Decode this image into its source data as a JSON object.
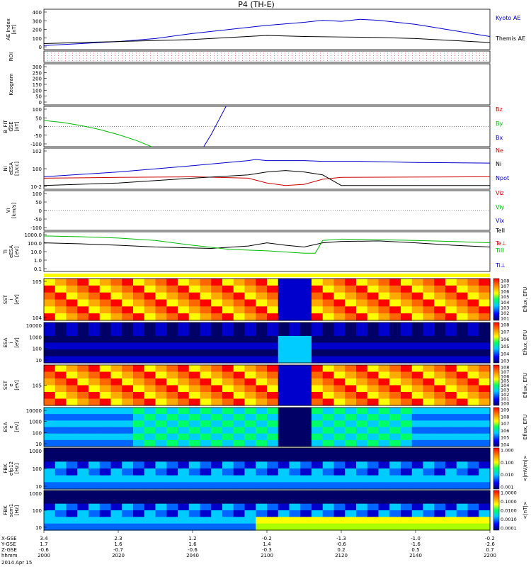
{
  "chart_data": {
    "type": "line",
    "title": "P4 (TH-E)",
    "date_label": "2014 Apr 15",
    "time_axis": {
      "row_labels": [
        "X-GSE",
        "Y-GSE",
        "Z-GSE",
        "hhmm"
      ],
      "ticks": [
        {
          "x": "3.4",
          "y": "1.7",
          "z": "-0.6",
          "hhmm": "2000"
        },
        {
          "x": "2.3",
          "y": "1.6",
          "z": "-0.7",
          "hhmm": "2020"
        },
        {
          "x": "1.2",
          "y": "1.6",
          "z": "-0.6",
          "hhmm": "2040"
        },
        {
          "x": "-0.2",
          "y": "1.4",
          "z": "-0.3",
          "hhmm": "2100"
        },
        {
          "x": "-1.3",
          "y": "-0.6",
          "z": "0.2",
          "hhmm": "2120"
        },
        {
          "x": "-1.0",
          "y": "-1.6",
          "z": "0.5",
          "hhmm": "2140"
        },
        {
          "x": "-0.2",
          "y": "-2.6",
          "z": "0.7",
          "hhmm": "2200"
        }
      ],
      "minutes_range": [
        0,
        120
      ]
    },
    "panels": [
      {
        "id": "ae",
        "ylabel": [
          "AE Index",
          "[nT]"
        ],
        "yticks": [
          "400",
          "300",
          "200",
          "100",
          "0"
        ],
        "ylim": [
          0,
          400
        ],
        "series": [
          {
            "name": "Kyoto AE",
            "color": "#0000cc",
            "t": [
              0,
              10,
              20,
              30,
              40,
              50,
              60,
              70,
              75,
              80,
              85,
              90,
              95,
              100,
              105,
              110,
              115,
              120
            ],
            "values": [
              40,
              60,
              80,
              110,
              160,
              200,
              240,
              270,
              290,
              280,
              300,
              290,
              270,
              250,
              220,
              190,
              160,
              130
            ]
          },
          {
            "name": "Themis AE",
            "color": "#000000",
            "t": [
              0,
              10,
              20,
              30,
              40,
              50,
              60,
              70,
              80,
              90,
              100,
              110,
              120
            ],
            "values": [
              60,
              70,
              80,
              90,
              100,
              120,
              140,
              130,
              125,
              120,
              110,
              90,
              70
            ]
          }
        ]
      },
      {
        "id": "roi",
        "ylabel": [
          "ROI"
        ],
        "yticks": []
      },
      {
        "id": "keogram",
        "ylabel": [
          "Keogram"
        ],
        "yticks": [
          "300",
          "250",
          "200",
          "150",
          "100",
          "50",
          "0"
        ],
        "ylim": [
          0,
          300
        ]
      },
      {
        "id": "bfit",
        "ylabel": [
          "B_FIT",
          "GSE",
          "[nT]"
        ],
        "yticks": [
          "100",
          "50",
          "0",
          "-50",
          "-100"
        ],
        "ylim": [
          -100,
          100
        ],
        "series": [
          {
            "name": "Bz",
            "color": "#cc0000",
            "t": [],
            "values": []
          },
          {
            "name": "By",
            "color": "#00bb00",
            "t": [
              0,
              5,
              10,
              15,
              20,
              25,
              29
            ],
            "values": [
              30,
              20,
              5,
              -15,
              -40,
              -70,
              -100
            ]
          },
          {
            "name": "Bx",
            "color": "#0000cc",
            "t": [
              43,
              45,
              47,
              49
            ],
            "values": [
              -100,
              -40,
              30,
              100
            ]
          }
        ]
      },
      {
        "id": "ni",
        "ylabel": [
          "Ni",
          "eESA",
          "[1/cc]"
        ],
        "yticks": [
          "10^2",
          "10^0",
          "10^-2"
        ],
        "series": [
          {
            "name": "Ne",
            "color": "#cc0000",
            "t": [
              0,
              20,
              40,
              55,
              60,
              65,
              70,
              75,
              80,
              120
            ],
            "values": [
              0.3,
              0.4,
              0.5,
              0.3,
              0.05,
              0.02,
              0.03,
              0.2,
              0.4,
              0.5
            ]
          },
          {
            "name": "Ni",
            "color": "#000000",
            "t": [
              0,
              20,
              40,
              55,
              60,
              65,
              70,
              75,
              80,
              120
            ],
            "values": [
              0.02,
              0.05,
              0.3,
              1,
              3,
              5,
              3,
              1,
              0.02,
              0.02
            ]
          },
          {
            "name": "Npot",
            "color": "#0000cc",
            "t": [
              0,
              20,
              40,
              55,
              57,
              60,
              70,
              75,
              85,
              100,
              120
            ],
            "values": [
              0.5,
              3,
              30,
              200,
              300,
              200,
              200,
              150,
              150,
              100,
              80
            ]
          }
        ]
      },
      {
        "id": "vi",
        "ylabel": [
          "Vi",
          "[km/s]"
        ],
        "yticks": [
          "100",
          "50",
          "0",
          "-50",
          "-100"
        ],
        "ylim": [
          -100,
          100
        ],
        "series": [
          {
            "name": "Viz",
            "color": "#cc0000",
            "t": [],
            "values": []
          },
          {
            "name": "Viy",
            "color": "#00bb00",
            "t": [],
            "values": []
          },
          {
            "name": "Vix",
            "color": "#0000cc",
            "t": [],
            "values": []
          }
        ]
      },
      {
        "id": "ti",
        "ylabel": [
          "Ti",
          "eESA",
          "[eV]"
        ],
        "yticks": [
          "1000.0",
          "100.0",
          "10.0",
          "1.0",
          "0.1"
        ],
        "series": [
          {
            "name": "TeII",
            "color": "#000000",
            "t": [
              0,
              10,
              20,
              30,
              45,
              55,
              60,
              65,
              70,
              75,
              80,
              90,
              100,
              110,
              120
            ],
            "values": [
              200,
              150,
              100,
              60,
              40,
              80,
              200,
              100,
              60,
              200,
              300,
              350,
              200,
              100,
              60
            ]
          },
          {
            "name": "Te⊥",
            "color": "#cc0000",
            "t": [],
            "values": []
          },
          {
            "name": "TiII",
            "color": "#00bb00",
            "t": [
              0,
              10,
              20,
              30,
              40,
              50,
              60,
              70,
              73,
              75,
              80,
              90,
              100,
              110,
              120
            ],
            "values": [
              1500,
              1200,
              800,
              400,
              100,
              30,
              20,
              10,
              10,
              400,
              600,
              500,
              400,
              300,
              200
            ]
          },
          {
            "name": "Ti⊥",
            "color": "#0000cc",
            "t": [],
            "values": []
          }
        ]
      },
      {
        "id": "sst_ion",
        "ylabel": [
          "SST",
          "i",
          "[eV]"
        ],
        "yticks": [
          "10^5",
          "10^4"
        ],
        "colorbar_label": "Eflux, EFU",
        "colorbar_ticks": [
          "10^8",
          "10^7",
          "10^6",
          "10^5",
          "10^4",
          "10^3",
          "10^2",
          "10^1"
        ]
      },
      {
        "id": "esa_ion",
        "ylabel": [
          "ESA",
          "i",
          "[eV]"
        ],
        "yticks": [
          "10000",
          "1000",
          "100",
          "10"
        ],
        "colorbar_label": "Eflux, EFU",
        "colorbar_ticks": [
          "10^8",
          "10^7",
          "10^6",
          "10^5",
          "10^4",
          "10^3"
        ]
      },
      {
        "id": "sst_elec",
        "ylabel": [
          "SST",
          "e",
          "[eV]"
        ],
        "yticks": [
          "10^5"
        ],
        "colorbar_label": "Eflux, EFU",
        "colorbar_ticks": [
          "10^8",
          "10^7",
          "10^6",
          "10^5",
          "10^4",
          "10^3",
          "10^2",
          "10^1",
          "10^0"
        ]
      },
      {
        "id": "esa_elec",
        "ylabel": [
          "ESA",
          "e",
          "[eV]"
        ],
        "yticks": [
          "10000",
          "1000",
          "100",
          "10"
        ],
        "colorbar_label": "Eflux, EFU",
        "colorbar_ticks": [
          "10^9",
          "10^8",
          "10^7",
          "10^6",
          "10^5",
          "10^4"
        ]
      },
      {
        "id": "fbk_e",
        "ylabel": [
          "FBK",
          "efp12",
          "[Hz]"
        ],
        "yticks": [
          "1000",
          "100",
          "10"
        ],
        "colorbar_label": "<|mV/m|>",
        "colorbar_ticks": [
          "1.000",
          "0.100",
          "0.010",
          "0.001"
        ]
      },
      {
        "id": "fbk_b",
        "ylabel": [
          "FBK",
          "scm1",
          "[Hz]"
        ],
        "yticks": [
          "1000",
          "100",
          "10"
        ],
        "colorbar_label": "<|nT|>",
        "colorbar_ticks": [
          "1.0000",
          "0.1000",
          "0.0100",
          "0.0010",
          "0.0001"
        ]
      }
    ]
  }
}
